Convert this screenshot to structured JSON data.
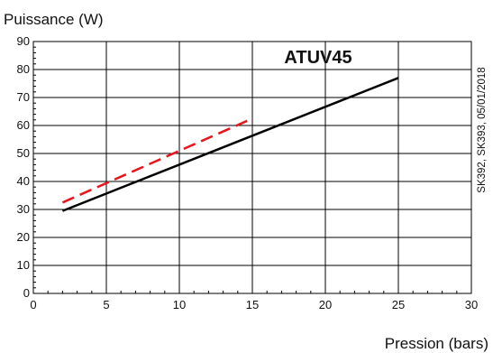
{
  "chart_data": {
    "type": "line",
    "title": "ATUV45",
    "ylabel": "Puissance (W)",
    "xlabel": "Pression (bars)",
    "side_note": "SK392, SK393, 05/01/2018",
    "xlim": [
      0,
      30
    ],
    "ylim": [
      0,
      90
    ],
    "x_ticks": [
      0,
      5,
      10,
      15,
      20,
      25,
      30
    ],
    "y_ticks": [
      0,
      10,
      20,
      30,
      40,
      50,
      60,
      70,
      80,
      90
    ],
    "grid": true,
    "legend": "none",
    "series": [
      {
        "x": [
          2,
          25
        ],
        "values": [
          29.5,
          77
        ],
        "color": "#000000",
        "style": "solid"
      },
      {
        "x": [
          2,
          15
        ],
        "values": [
          32.5,
          62.5
        ],
        "color": "#e8141c",
        "style": "dashed"
      }
    ]
  }
}
